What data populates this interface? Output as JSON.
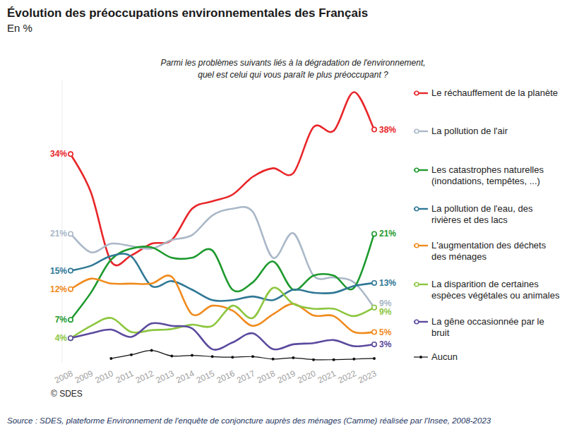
{
  "chart_data": {
    "type": "line",
    "title": "Évolution des préoccupations environnementales des Français",
    "subtitle": "En %",
    "question": [
      "Parmi les problèmes suivants liés à la dégradation de l'environnement,",
      "quel est celui qui vous paraît le plus préoccupant ?"
    ],
    "copyright": "© SDES",
    "source": "Source : SDES, plateforme Environnement de l'enquête de conjoncture auprès des ménages (Camme) réalisée par l'Insee, 2008-2023",
    "categories": [
      "2008",
      "2009",
      "2010",
      "2011",
      "2012",
      "2013",
      "2014",
      "2015",
      "2016",
      "2017",
      "2018",
      "2019",
      "2020",
      "2021",
      "2022",
      "2023"
    ],
    "ylim": [
      0,
      46
    ],
    "tick_labels": "x",
    "grid": false,
    "legend": "right",
    "data_labels": true,
    "series": [
      {
        "name": "Le réchauffement de la planète",
        "color": "#e8262a",
        "marker": "circle",
        "values": [
          34,
          27.8,
          16.5,
          17.5,
          19.4,
          20,
          25.1,
          26.3,
          27.4,
          30.3,
          31.7,
          30.9,
          38.4,
          37.8,
          44.1,
          38
        ],
        "value_labels": [
          "34%",
          null,
          null,
          null,
          null,
          null,
          null,
          null,
          null,
          null,
          null,
          null,
          null,
          null,
          null,
          "38%"
        ]
      },
      {
        "name": "La pollution de l'air",
        "color": "#aab8c8",
        "marker": "circle",
        "values": [
          21,
          18,
          19.4,
          19,
          18.6,
          20,
          20.8,
          24,
          25.1,
          24.6,
          17.1,
          21.1,
          14.2,
          13.9,
          13.1,
          9
        ],
        "value_labels": [
          "21%",
          null,
          null,
          null,
          null,
          null,
          null,
          null,
          null,
          null,
          null,
          null,
          null,
          null,
          null,
          "9%"
        ]
      },
      {
        "name": "Les catastrophes naturelles (inondations, tempêtes, ...)",
        "color": "#1e9a2e",
        "marker": "circle",
        "values": [
          7,
          11.4,
          16.8,
          18.6,
          18.8,
          17.1,
          17.1,
          18.3,
          11.9,
          13.1,
          16.5,
          11.9,
          14.2,
          14.2,
          12.2,
          21
        ],
        "value_labels": [
          "7%",
          null,
          null,
          null,
          null,
          null,
          null,
          null,
          null,
          null,
          null,
          null,
          null,
          null,
          null,
          "21%"
        ]
      },
      {
        "name": "La pollution de l'eau, des rivières et des lacs",
        "color": "#2f7895",
        "marker": "circle",
        "values": [
          15,
          15.8,
          17.4,
          17.3,
          12.5,
          13.3,
          11.9,
          10.2,
          10.2,
          10.8,
          10.2,
          11.9,
          11.4,
          11.4,
          12.5,
          13
        ],
        "value_labels": [
          "15%",
          null,
          null,
          null,
          null,
          null,
          null,
          null,
          null,
          null,
          null,
          null,
          null,
          null,
          null,
          "13%"
        ]
      },
      {
        "name": "L'augmentation des déchets des ménages",
        "color": "#f08a1c",
        "marker": "circle",
        "values": [
          12,
          13.7,
          12.9,
          12.9,
          12.9,
          14,
          7.9,
          9.3,
          8.5,
          6,
          7.9,
          9.6,
          7.7,
          7.6,
          5,
          5
        ],
        "value_labels": [
          "12%",
          null,
          null,
          null,
          null,
          null,
          null,
          null,
          null,
          null,
          null,
          null,
          null,
          null,
          null,
          "5%"
        ]
      },
      {
        "name": "La disparition de certaines espèces végétales ou animales",
        "color": "#8cc63f",
        "marker": "circle",
        "values": [
          4,
          6,
          7.3,
          5,
          5.3,
          5.5,
          6.2,
          6,
          9.3,
          7.3,
          12.2,
          9.6,
          8.8,
          8.8,
          7.6,
          9
        ],
        "value_labels": [
          "4%",
          null,
          null,
          null,
          null,
          null,
          null,
          null,
          null,
          null,
          null,
          null,
          null,
          null,
          null,
          "9%"
        ]
      },
      {
        "name": "La gêne occasionnée par le bruit",
        "color": "#5b4a9e",
        "marker": "circle",
        "values": [
          4,
          4.8,
          5.4,
          4.2,
          6.4,
          6,
          5.6,
          2.2,
          3.3,
          4.8,
          2.2,
          3,
          3.2,
          3.7,
          2.7,
          3
        ],
        "value_labels": [
          null,
          null,
          null,
          null,
          null,
          null,
          null,
          null,
          null,
          null,
          null,
          null,
          null,
          null,
          null,
          "3%"
        ]
      },
      {
        "name": "Aucun",
        "color": "#111111",
        "marker": "dot",
        "values": [
          null,
          null,
          0.7,
          1.3,
          2,
          1.1,
          1.2,
          1,
          0.9,
          1,
          0.6,
          0.8,
          0.5,
          0.5,
          0.6,
          0.7
        ]
      }
    ]
  }
}
